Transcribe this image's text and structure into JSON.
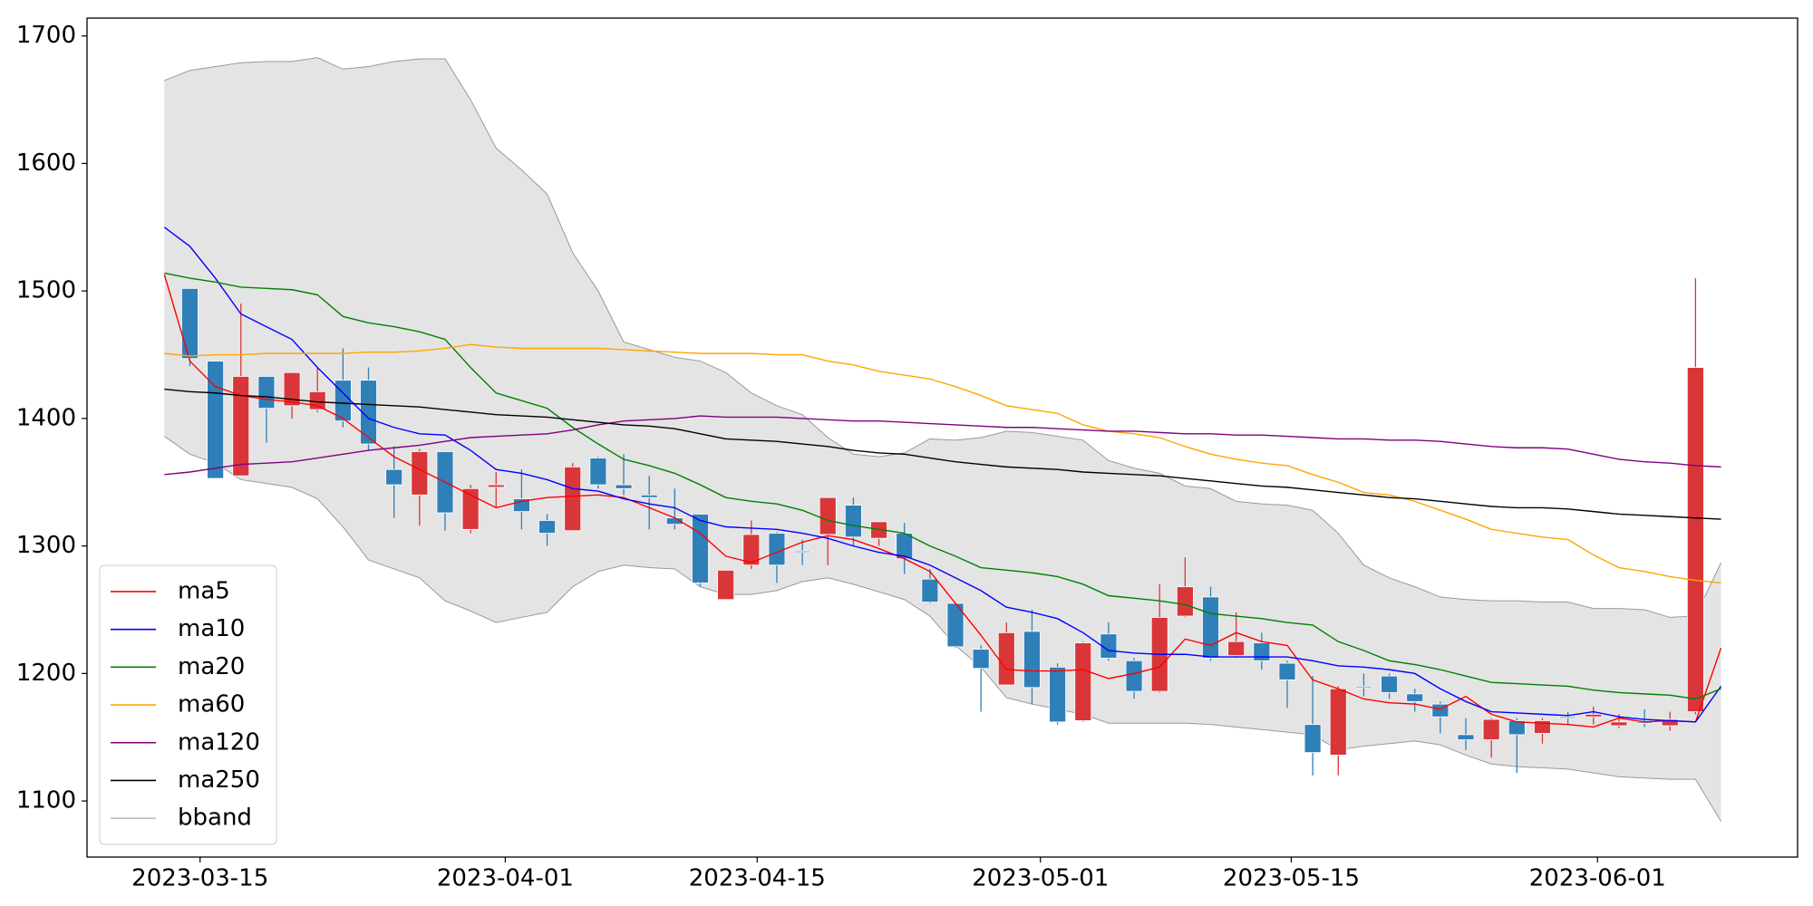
{
  "chart_data": {
    "type": "candlestick",
    "xlim": [
      -3.03,
      64.0
    ],
    "ylim": [
      1056,
      1714
    ],
    "xticks": [
      {
        "value": 1.4,
        "label": "2023-03-15"
      },
      {
        "value": 13.36,
        "label": "2023-04-01"
      },
      {
        "value": 23.23,
        "label": "2023-04-15"
      },
      {
        "value": 34.33,
        "label": "2023-05-01"
      },
      {
        "value": 44.16,
        "label": "2023-05-15"
      },
      {
        "value": 56.16,
        "label": "2023-06-01"
      }
    ],
    "yticks": [
      1100,
      1200,
      1300,
      1400,
      1500,
      1600,
      1700
    ],
    "legend_position": "lower left",
    "candles": {
      "up_color": "#d9363a",
      "down_color": "#2f7fb9",
      "x": [
        1,
        2,
        3,
        4,
        5,
        6,
        7,
        8,
        9,
        10,
        11,
        12,
        13,
        14,
        15,
        16,
        17,
        18,
        19,
        20,
        21,
        22,
        23,
        24,
        25,
        26,
        27,
        28,
        29,
        30,
        31,
        32,
        33,
        34,
        35,
        36,
        37,
        38,
        39,
        40,
        41,
        42,
        43,
        44,
        45,
        46,
        47,
        48,
        49,
        50,
        51,
        52,
        53,
        54,
        55,
        56,
        57,
        58,
        59,
        60
      ],
      "open": [
        1502,
        1445,
        1355,
        1433,
        1410,
        1407,
        1430,
        1430,
        1360,
        1340,
        1374,
        1313,
        1346,
        1337,
        1320,
        1312,
        1369,
        1348,
        1340,
        1322,
        1325,
        1258,
        1285,
        1310,
        1296,
        1309,
        1332,
        1306,
        1310,
        1274,
        1255,
        1219,
        1191,
        1233,
        1205,
        1163,
        1231,
        1210,
        1186,
        1245,
        1260,
        1214,
        1224,
        1208,
        1160,
        1136,
        1190,
        1198,
        1184,
        1176,
        1152,
        1148,
        1163,
        1153,
        1166,
        1166,
        1159,
        1162,
        1159,
        1170
      ],
      "high": [
        1502,
        1445,
        1490,
        1433,
        1436,
        1440,
        1455,
        1440,
        1378,
        1376,
        1374,
        1348,
        1358,
        1360,
        1325,
        1365,
        1370,
        1372,
        1355,
        1345,
        1325,
        1281,
        1320,
        1311,
        1305,
        1338,
        1338,
        1319,
        1318,
        1282,
        1255,
        1222,
        1240,
        1250,
        1208,
        1225,
        1240,
        1212,
        1270,
        1291,
        1268,
        1248,
        1232,
        1210,
        1198,
        1190,
        1200,
        1200,
        1188,
        1178,
        1165,
        1165,
        1165,
        1165,
        1170,
        1174,
        1168,
        1172,
        1170,
        1510
      ],
      "low": [
        1441,
        1353,
        1355,
        1381,
        1400,
        1405,
        1393,
        1375,
        1322,
        1316,
        1312,
        1310,
        1330,
        1313,
        1300,
        1312,
        1345,
        1340,
        1313,
        1313,
        1268,
        1258,
        1282,
        1271,
        1285,
        1285,
        1300,
        1300,
        1278,
        1255,
        1220,
        1170,
        1191,
        1176,
        1160,
        1162,
        1210,
        1180,
        1185,
        1244,
        1210,
        1213,
        1203,
        1173,
        1120,
        1120,
        1182,
        1180,
        1170,
        1153,
        1140,
        1134,
        1122,
        1145,
        1160,
        1160,
        1157,
        1158,
        1155,
        1168
      ],
      "close": [
        1447,
        1353,
        1433,
        1408,
        1436,
        1421,
        1398,
        1380,
        1348,
        1374,
        1326,
        1345,
        1348,
        1327,
        1310,
        1362,
        1348,
        1345,
        1338,
        1317,
        1271,
        1281,
        1309,
        1285,
        1295,
        1338,
        1307,
        1319,
        1290,
        1256,
        1221,
        1204,
        1232,
        1189,
        1162,
        1224,
        1212,
        1186,
        1244,
        1268,
        1212,
        1225,
        1210,
        1195,
        1138,
        1188,
        1189,
        1185,
        1178,
        1166,
        1148,
        1164,
        1152,
        1163,
        1165,
        1168,
        1162,
        1161,
        1164,
        1440
      ]
    },
    "x": [
      0,
      1,
      2,
      3,
      4,
      5,
      6,
      7,
      8,
      9,
      10,
      11,
      12,
      13,
      14,
      15,
      16,
      17,
      18,
      19,
      20,
      21,
      22,
      23,
      24,
      25,
      26,
      27,
      28,
      29,
      30,
      31,
      32,
      33,
      34,
      35,
      36,
      37,
      38,
      39,
      40,
      41,
      42,
      43,
      44,
      45,
      46,
      47,
      48,
      49,
      50,
      51,
      52,
      53,
      54,
      55,
      56,
      57,
      58,
      59,
      60,
      61
    ],
    "series": [
      {
        "name": "ma5",
        "color": "#ff0000",
        "values": [
          1513,
          1445,
          1425,
          1418,
          1415,
          1413,
          1410,
          1400,
          1385,
          1370,
          1360,
          1350,
          1340,
          1330,
          1335,
          1338,
          1339,
          1340,
          1338,
          1330,
          1322,
          1310,
          1292,
          1287,
          1295,
          1303,
          1308,
          1305,
          1298,
          1290,
          1280,
          1255,
          1230,
          1203,
          1202,
          1202,
          1203,
          1196,
          1200,
          1205,
          1227,
          1222,
          1232,
          1225,
          1222,
          1195,
          1188,
          1180,
          1177,
          1176,
          1172,
          1182,
          1168,
          1162,
          1161,
          1160,
          1158,
          1165,
          1162,
          1163,
          1162,
          1220
        ]
      },
      {
        "name": "ma10",
        "color": "#0000ff",
        "values": [
          1550,
          1535,
          1510,
          1482,
          1472,
          1462,
          1440,
          1420,
          1400,
          1393,
          1388,
          1387,
          1375,
          1360,
          1357,
          1352,
          1345,
          1343,
          1337,
          1333,
          1330,
          1320,
          1315,
          1314,
          1313,
          1310,
          1306,
          1300,
          1295,
          1292,
          1285,
          1275,
          1265,
          1252,
          1248,
          1243,
          1232,
          1218,
          1216,
          1215,
          1215,
          1213,
          1213,
          1213,
          1213,
          1210,
          1206,
          1205,
          1203,
          1200,
          1188,
          1178,
          1170,
          1169,
          1168,
          1167,
          1170,
          1166,
          1164,
          1163,
          1162,
          1190
        ]
      },
      {
        "name": "ma20",
        "color": "#008000",
        "values": [
          1514,
          1510,
          1507,
          1503,
          1502,
          1501,
          1497,
          1480,
          1475,
          1472,
          1468,
          1462,
          1440,
          1420,
          1414,
          1408,
          1393,
          1380,
          1368,
          1363,
          1357,
          1348,
          1338,
          1335,
          1333,
          1328,
          1320,
          1316,
          1313,
          1310,
          1300,
          1292,
          1283,
          1281,
          1279,
          1276,
          1270,
          1261,
          1259,
          1257,
          1254,
          1247,
          1245,
          1243,
          1240,
          1238,
          1225,
          1218,
          1210,
          1207,
          1203,
          1198,
          1193,
          1192,
          1191,
          1190,
          1187,
          1185,
          1184,
          1183,
          1180,
          1188
        ]
      },
      {
        "name": "ma60",
        "color": "#ffa500",
        "values": [
          1451,
          1449,
          1450,
          1450,
          1451,
          1451,
          1451,
          1451,
          1452,
          1452,
          1453,
          1455,
          1458,
          1456,
          1455,
          1455,
          1455,
          1455,
          1454,
          1453,
          1452,
          1451,
          1451,
          1451,
          1450,
          1450,
          1445,
          1442,
          1437,
          1434,
          1431,
          1425,
          1418,
          1410,
          1407,
          1404,
          1395,
          1390,
          1388,
          1385,
          1378,
          1372,
          1368,
          1365,
          1363,
          1356,
          1350,
          1342,
          1340,
          1335,
          1328,
          1321,
          1313,
          1310,
          1307,
          1305,
          1293,
          1283,
          1280,
          1276,
          1273,
          1271
        ]
      },
      {
        "name": "ma120",
        "color": "#800080",
        "values": [
          1356,
          1358,
          1361,
          1364,
          1365,
          1366,
          1369,
          1372,
          1375,
          1377,
          1379,
          1382,
          1385,
          1386,
          1387,
          1388,
          1391,
          1395,
          1398,
          1399,
          1400,
          1402,
          1401,
          1401,
          1401,
          1400,
          1399,
          1398,
          1398,
          1397,
          1396,
          1395,
          1394,
          1393,
          1393,
          1392,
          1391,
          1390,
          1390,
          1389,
          1388,
          1388,
          1387,
          1387,
          1386,
          1385,
          1384,
          1384,
          1383,
          1383,
          1382,
          1380,
          1378,
          1377,
          1377,
          1376,
          1372,
          1368,
          1366,
          1365,
          1363,
          1362
        ]
      },
      {
        "name": "ma250",
        "color": "#000000",
        "values": [
          1423,
          1421,
          1420,
          1418,
          1417,
          1415,
          1413,
          1412,
          1411,
          1410,
          1409,
          1407,
          1405,
          1403,
          1402,
          1401,
          1399,
          1397,
          1395,
          1394,
          1392,
          1388,
          1384,
          1383,
          1382,
          1380,
          1378,
          1375,
          1373,
          1372,
          1369,
          1366,
          1364,
          1362,
          1361,
          1360,
          1358,
          1357,
          1356,
          1355,
          1353,
          1351,
          1349,
          1347,
          1346,
          1344,
          1342,
          1340,
          1338,
          1337,
          1335,
          1333,
          1331,
          1330,
          1330,
          1329,
          1327,
          1325,
          1324,
          1323,
          1322,
          1321
        ]
      }
    ],
    "band": {
      "name": "bband",
      "color": "#e4e4e4",
      "edge_color": "#999999",
      "upper": [
        1665,
        1673,
        1676,
        1679,
        1680,
        1680,
        1683,
        1674,
        1676,
        1680,
        1682,
        1682,
        1650,
        1612,
        1595,
        1576,
        1530,
        1500,
        1460,
        1454,
        1448,
        1445,
        1436,
        1420,
        1410,
        1403,
        1385,
        1372,
        1370,
        1373,
        1384,
        1383,
        1385,
        1390,
        1389,
        1386,
        1383,
        1367,
        1361,
        1357,
        1347,
        1345,
        1335,
        1333,
        1332,
        1328,
        1310,
        1285,
        1275,
        1268,
        1260,
        1258,
        1257,
        1257,
        1256,
        1256,
        1251,
        1251,
        1250,
        1244,
        1245,
        1287
      ],
      "lower": [
        1386,
        1372,
        1365,
        1352,
        1349,
        1346,
        1337,
        1315,
        1289,
        1282,
        1275,
        1257,
        1249,
        1240,
        1244,
        1248,
        1268,
        1280,
        1285,
        1283,
        1282,
        1268,
        1262,
        1262,
        1265,
        1272,
        1275,
        1270,
        1264,
        1258,
        1245,
        1222,
        1205,
        1181,
        1176,
        1172,
        1168,
        1161,
        1161,
        1161,
        1161,
        1160,
        1158,
        1156,
        1154,
        1152,
        1140,
        1143,
        1145,
        1147,
        1144,
        1136,
        1129,
        1127,
        1126,
        1125,
        1122,
        1119,
        1118,
        1117,
        1117,
        1084
      ]
    }
  }
}
